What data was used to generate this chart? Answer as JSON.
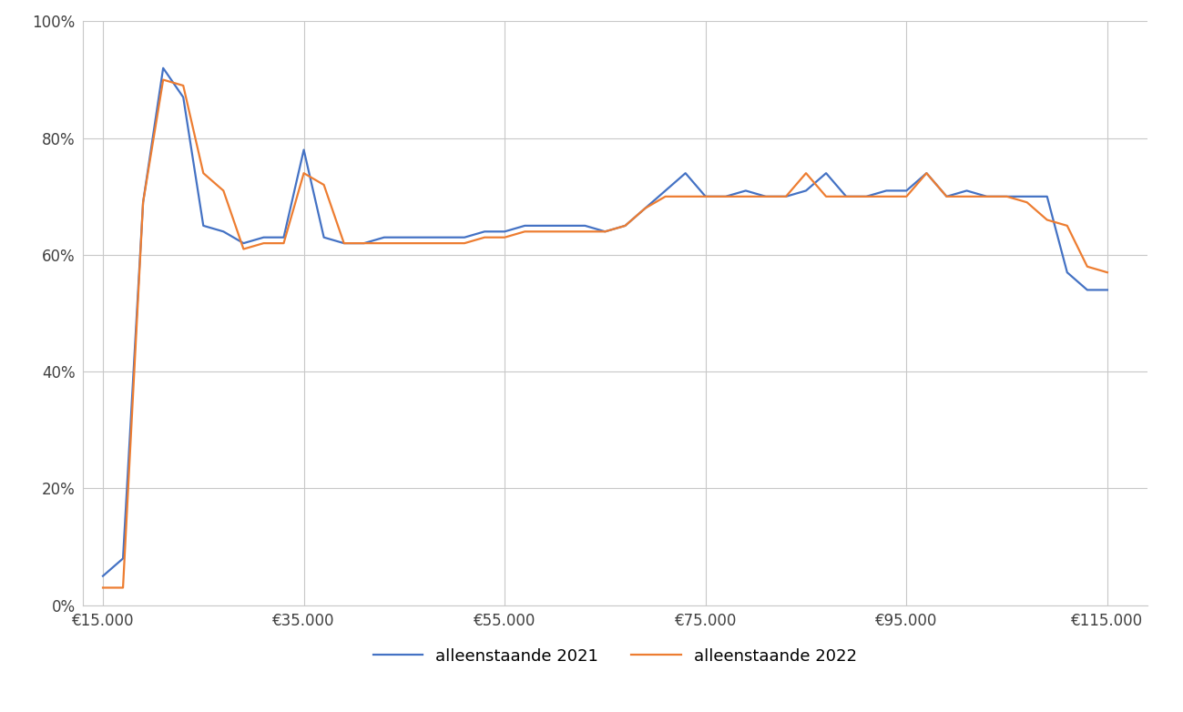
{
  "x_2021": [
    15000,
    17000,
    19000,
    21000,
    23000,
    25000,
    27000,
    29000,
    31000,
    33000,
    35000,
    37000,
    39000,
    41000,
    43000,
    45000,
    47000,
    49000,
    51000,
    53000,
    55000,
    57000,
    59000,
    61000,
    63000,
    65000,
    67000,
    69000,
    71000,
    73000,
    75000,
    77000,
    79000,
    81000,
    83000,
    85000,
    87000,
    89000,
    91000,
    93000,
    95000,
    97000,
    99000,
    101000,
    103000,
    105000,
    107000,
    109000,
    111000,
    113000,
    115000
  ],
  "y_2021": [
    0.05,
    0.08,
    0.69,
    0.92,
    0.87,
    0.65,
    0.64,
    0.62,
    0.63,
    0.63,
    0.78,
    0.63,
    0.62,
    0.62,
    0.63,
    0.63,
    0.63,
    0.63,
    0.63,
    0.64,
    0.64,
    0.65,
    0.65,
    0.65,
    0.65,
    0.64,
    0.65,
    0.68,
    0.71,
    0.74,
    0.7,
    0.7,
    0.71,
    0.7,
    0.7,
    0.71,
    0.74,
    0.7,
    0.7,
    0.71,
    0.71,
    0.74,
    0.7,
    0.71,
    0.7,
    0.7,
    0.7,
    0.7,
    0.57,
    0.54,
    0.54
  ],
  "x_2022": [
    15000,
    17000,
    19000,
    21000,
    23000,
    25000,
    27000,
    29000,
    31000,
    33000,
    35000,
    37000,
    39000,
    41000,
    43000,
    45000,
    47000,
    49000,
    51000,
    53000,
    55000,
    57000,
    59000,
    61000,
    63000,
    65000,
    67000,
    69000,
    71000,
    73000,
    75000,
    77000,
    79000,
    81000,
    83000,
    85000,
    87000,
    89000,
    91000,
    93000,
    95000,
    97000,
    99000,
    101000,
    103000,
    105000,
    107000,
    109000,
    111000,
    113000,
    115000
  ],
  "y_2022": [
    0.03,
    0.03,
    0.69,
    0.9,
    0.89,
    0.74,
    0.71,
    0.61,
    0.62,
    0.62,
    0.74,
    0.72,
    0.62,
    0.62,
    0.62,
    0.62,
    0.62,
    0.62,
    0.62,
    0.63,
    0.63,
    0.64,
    0.64,
    0.64,
    0.64,
    0.64,
    0.65,
    0.68,
    0.7,
    0.7,
    0.7,
    0.7,
    0.7,
    0.7,
    0.7,
    0.74,
    0.7,
    0.7,
    0.7,
    0.7,
    0.7,
    0.74,
    0.7,
    0.7,
    0.7,
    0.7,
    0.69,
    0.66,
    0.65,
    0.58,
    0.57
  ],
  "color_2021": "#4472C4",
  "color_2022": "#ED7D31",
  "legend_2021": "alleenstaande 2021",
  "legend_2022": "alleenstaande 2022",
  "xlim": [
    13000,
    119000
  ],
  "ylim": [
    0,
    1.0
  ],
  "xticks": [
    15000,
    35000,
    55000,
    75000,
    95000,
    115000
  ],
  "yticks": [
    0.0,
    0.2,
    0.4,
    0.6,
    0.8,
    1.0
  ],
  "background_color": "#ffffff",
  "grid_color": "#c8c8c8",
  "linewidth": 1.6
}
